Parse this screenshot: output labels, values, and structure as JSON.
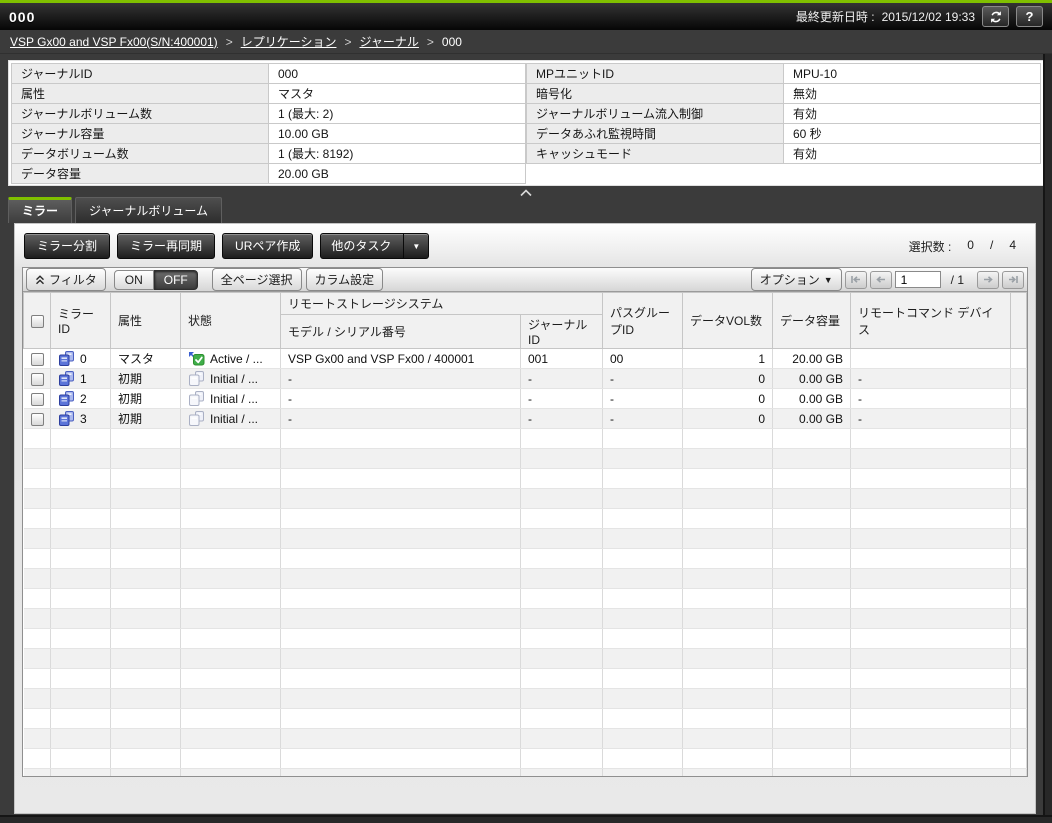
{
  "header": {
    "title": "000",
    "last_updated_label": "最終更新日時 :",
    "last_updated": "2015/12/02 19:33",
    "help_label": "?"
  },
  "breadcrumb": {
    "items": [
      {
        "label": "VSP Gx00 and VSP Fx00(S/N:400001)",
        "link": true
      },
      {
        "label": "レプリケーション",
        "link": true
      },
      {
        "label": "ジャーナル",
        "link": true
      },
      {
        "label": "000",
        "link": false
      }
    ]
  },
  "summary": {
    "left": [
      {
        "label": "ジャーナルID",
        "value": "000"
      },
      {
        "label": "属性",
        "value": "マスタ"
      },
      {
        "label": "ジャーナルボリューム数",
        "value": "1 (最大: 2)"
      },
      {
        "label": "ジャーナル容量",
        "value": "10.00 GB"
      },
      {
        "label": "データボリューム数",
        "value": "1 (最大: 8192)"
      },
      {
        "label": "データ容量",
        "value": "20.00 GB"
      }
    ],
    "right": [
      {
        "label": "MPユニットID",
        "value": "MPU-10"
      },
      {
        "label": "暗号化",
        "value": "無効"
      },
      {
        "label": "ジャーナルボリューム流入制御",
        "value": "有効"
      },
      {
        "label": "データあふれ監視時間",
        "value": "60 秒"
      },
      {
        "label": "キャッシュモード",
        "value": "有効"
      }
    ]
  },
  "tabs": [
    {
      "label": "ミラー",
      "active": true
    },
    {
      "label": "ジャーナルボリューム",
      "active": false
    }
  ],
  "toolbar": {
    "split_button": "ミラー分割",
    "resync_button": "ミラー再同期",
    "create_pair_button": "URペア作成",
    "other_tasks_button": "他のタスク",
    "selection": {
      "label": "選択数 :",
      "selected": "0",
      "separator": "/",
      "total": "4"
    }
  },
  "filterbar": {
    "filter_button": "フィルタ",
    "on_label": "ON",
    "off_label": "OFF",
    "select_all_button": "全ページ選択",
    "column_settings_button": "カラム設定",
    "options_button": "オプション",
    "page_current": "1",
    "page_total_label": "/ 1"
  },
  "table": {
    "group_header": "リモートストレージシステム",
    "columns": [
      "ミラーID",
      "属性",
      "状態",
      "モデル / シリアル番号",
      "ジャーナルID",
      "パスグループID",
      "データVOL数",
      "データ容量",
      "リモートコマンド デバイス"
    ],
    "rows": [
      {
        "mirror_id": "0",
        "attribute": "マスタ",
        "status": "Active / ...",
        "status_kind": "active",
        "model_serial": "VSP Gx00 and VSP Fx00 / 400001",
        "journal_id": "001",
        "path_group": "00",
        "data_vols": "1",
        "data_capacity": "20.00 GB",
        "remote_cmd": ""
      },
      {
        "mirror_id": "1",
        "attribute": "初期",
        "status": "Initial / ...",
        "status_kind": "initial",
        "model_serial": "-",
        "journal_id": "-",
        "path_group": "-",
        "data_vols": "0",
        "data_capacity": "0.00 GB",
        "remote_cmd": "-"
      },
      {
        "mirror_id": "2",
        "attribute": "初期",
        "status": "Initial / ...",
        "status_kind": "initial",
        "model_serial": "-",
        "journal_id": "-",
        "path_group": "-",
        "data_vols": "0",
        "data_capacity": "0.00 GB",
        "remote_cmd": "-"
      },
      {
        "mirror_id": "3",
        "attribute": "初期",
        "status": "Initial / ...",
        "status_kind": "initial",
        "model_serial": "-",
        "journal_id": "-",
        "path_group": "-",
        "data_vols": "0",
        "data_capacity": "0.00 GB",
        "remote_cmd": "-"
      }
    ]
  },
  "colors": {
    "accent_green": "#80c000",
    "active_status_green": "#3fae4a",
    "mirror_icon_blue": "#5b74d8"
  }
}
